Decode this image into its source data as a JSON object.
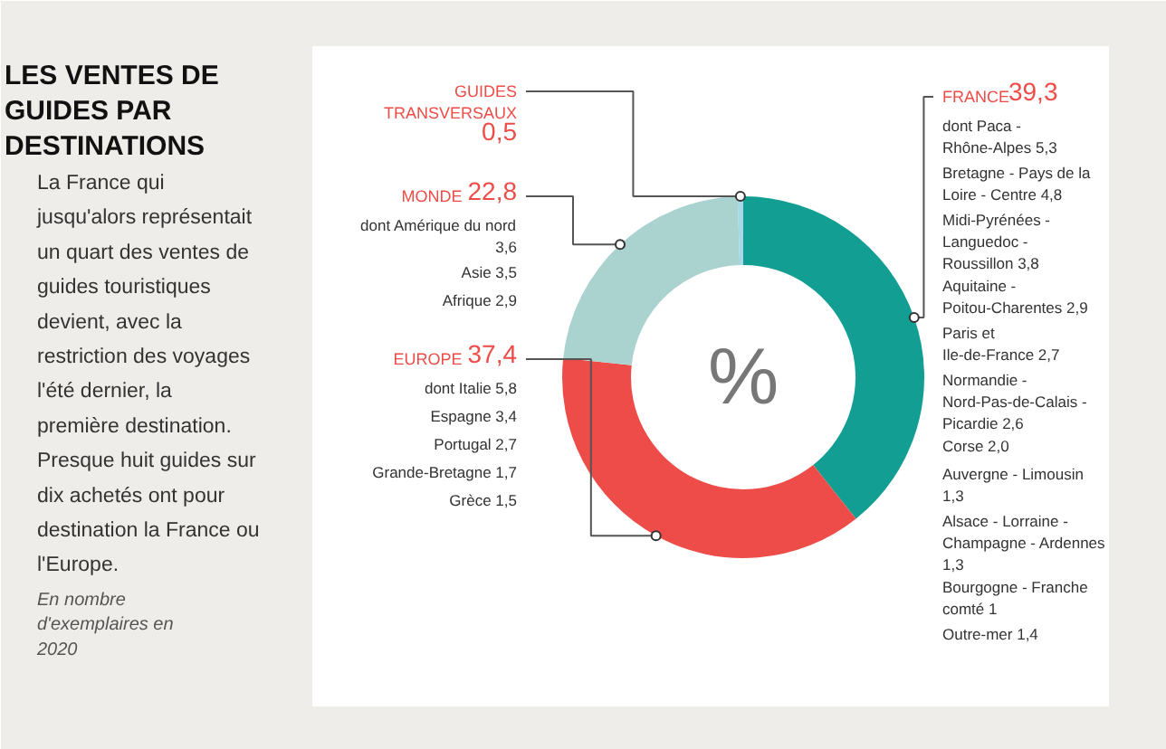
{
  "chart_data": {
    "type": "donut",
    "title": "LES VENTES DE GUIDES PAR DESTINATIONS",
    "subtitle": "La France qui jusqu'alors représentait un quart des ventes de guides touristiques devient, avec la restriction des voyages l'été dernier, la première destination. Presque huit guides sur dix achetés ont pour destination la France ou l'Europe.",
    "categories": [
      "FRANCE",
      "EUROPE",
      "MONDE",
      "GUIDES TRANSVERSAUX"
    ],
    "values": [
      39.3,
      37.4,
      22.8,
      0.5
    ],
    "value_labels": [
      "39,3",
      "37,4",
      "22,8",
      "0,5"
    ],
    "colors": [
      "#139e93",
      "#ee4c48",
      "#aad2cf",
      "#a8d8e8"
    ],
    "annotations": [
      "%",
      "En nombre d'exemplaires en 2020",
      {
        "text": "dont Paca - Rhône-Alpes 5,3",
        "x": "FRANCE"
      },
      {
        "text": "Bretagne - Pays de la Loire - Centre 4,8",
        "x": "FRANCE"
      },
      {
        "text": "Midi-Pyrénées - Languedoc - Roussillon 3,8",
        "x": "FRANCE"
      },
      {
        "text": "Aquitaine - Poitou-Charentes 2,9",
        "x": "FRANCE"
      },
      {
        "text": "Paris et Ile-de-France 2,7",
        "x": "FRANCE"
      },
      {
        "text": "Normandie - Nord-Pas-de-Calais - Picardie 2,6",
        "x": "FRANCE"
      },
      {
        "text": "Corse 2,0",
        "x": "FRANCE"
      },
      {
        "text": "Auvergne - Limousin 1,3",
        "x": "FRANCE"
      },
      {
        "text": "Alsace - Lorraine - Champagne - Ardennes 1,3",
        "x": "FRANCE"
      },
      {
        "text": "Bourgogne - Franche comté 1",
        "x": "FRANCE"
      },
      {
        "text": "Outre-mer 1,4",
        "x": "FRANCE"
      },
      {
        "text": "dont Amérique du nord 3,6",
        "x": "MONDE"
      },
      {
        "text": "Asie 3,5",
        "x": "MONDE"
      },
      {
        "text": "Afrique 2,9",
        "x": "MONDE"
      },
      {
        "text": "dont Italie 5,8",
        "x": "EUROPE"
      },
      {
        "text": "Espagne 3,4",
        "x": "EUROPE"
      },
      {
        "text": "Portugal 2,7",
        "x": "EUROPE"
      },
      {
        "text": "Grande-Bretagne 1,7",
        "x": "EUROPE"
      },
      {
        "text": "Grèce 1,5",
        "x": "EUROPE"
      }
    ]
  }
}
